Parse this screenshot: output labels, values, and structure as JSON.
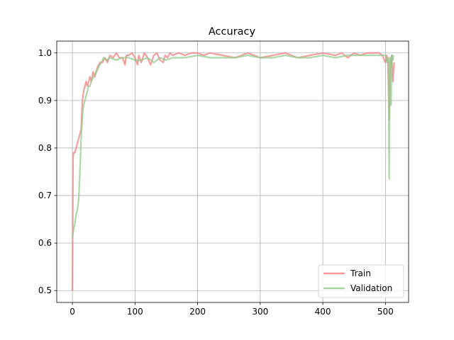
{
  "chart_data": {
    "type": "line",
    "title": "Accuracy",
    "xlabel": "",
    "ylabel": "",
    "xlim": [
      -25,
      537
    ],
    "ylim": [
      0.475,
      1.025
    ],
    "xticks": [
      0,
      100,
      200,
      300,
      400,
      500
    ],
    "yticks": [
      0.5,
      0.6,
      0.7,
      0.8,
      0.9,
      1.0
    ],
    "xtick_labels": [
      "0",
      "100",
      "200",
      "300",
      "400",
      "500"
    ],
    "ytick_labels": [
      "0.5",
      "0.6",
      "0.7",
      "0.8",
      "0.9",
      "1.0"
    ],
    "grid": true,
    "legend_position": "lower-right",
    "series": [
      {
        "name": "Train",
        "color": "#f08080",
        "x": [
          0,
          1,
          2,
          4,
          6,
          8,
          10,
          12,
          14,
          15,
          16,
          17,
          18,
          20,
          22,
          24,
          26,
          28,
          30,
          33,
          36,
          40,
          44,
          48,
          52,
          56,
          60,
          65,
          70,
          75,
          80,
          84,
          86,
          90,
          95,
          100,
          104,
          106,
          110,
          115,
          120,
          125,
          130,
          135,
          140,
          145,
          148,
          152,
          156,
          160,
          170,
          180,
          190,
          200,
          210,
          220,
          240,
          260,
          280,
          300,
          320,
          340,
          360,
          380,
          400,
          420,
          430,
          440,
          450,
          460,
          470,
          480,
          490,
          495,
          500,
          502,
          504,
          506,
          508,
          510,
          512,
          514
        ],
        "y": [
          0.5,
          0.78,
          0.79,
          0.79,
          0.8,
          0.81,
          0.82,
          0.83,
          0.84,
          0.87,
          0.9,
          0.91,
          0.92,
          0.93,
          0.94,
          0.93,
          0.94,
          0.95,
          0.94,
          0.96,
          0.95,
          0.97,
          0.98,
          0.98,
          0.99,
          0.98,
          0.995,
          0.99,
          1.0,
          0.99,
          0.99,
          0.975,
          0.995,
          0.995,
          1.0,
          0.99,
          0.975,
          0.995,
          0.98,
          1.0,
          0.99,
          0.975,
          0.995,
          1.0,
          0.985,
          0.98,
          0.995,
          0.99,
          1.0,
          0.995,
          1.0,
          0.995,
          1.0,
          1.0,
          0.995,
          1.0,
          0.995,
          0.99,
          1.0,
          0.99,
          0.995,
          1.0,
          0.99,
          0.995,
          1.0,
          0.995,
          1.0,
          0.99,
          1.0,
          0.995,
          1.0,
          1.0,
          1.0,
          0.995,
          0.98,
          0.995,
          0.98,
          0.86,
          0.98,
          0.995,
          0.94,
          0.98
        ]
      },
      {
        "name": "Validation",
        "color": "#90ca8a",
        "x": [
          0,
          1,
          2,
          4,
          6,
          8,
          10,
          12,
          14,
          16,
          18,
          20,
          22,
          24,
          26,
          28,
          30,
          34,
          38,
          42,
          46,
          50,
          55,
          60,
          70,
          80,
          90,
          100,
          110,
          120,
          130,
          140,
          150,
          160,
          180,
          200,
          220,
          240,
          260,
          280,
          300,
          320,
          340,
          360,
          380,
          400,
          420,
          440,
          460,
          480,
          495,
          500,
          503,
          505,
          506,
          507,
          508,
          509,
          510,
          511,
          512,
          513
        ],
        "y": [
          0.61,
          0.62,
          0.63,
          0.64,
          0.66,
          0.67,
          0.69,
          0.75,
          0.82,
          0.87,
          0.89,
          0.9,
          0.91,
          0.92,
          0.93,
          0.93,
          0.94,
          0.95,
          0.96,
          0.97,
          0.98,
          0.99,
          0.985,
          0.99,
          0.985,
          0.99,
          0.99,
          0.985,
          0.985,
          0.99,
          0.98,
          0.99,
          0.985,
          0.99,
          0.99,
          0.995,
          0.99,
          0.99,
          0.99,
          0.995,
          0.99,
          0.99,
          0.995,
          0.99,
          0.99,
          0.995,
          0.99,
          0.995,
          0.995,
          0.995,
          0.995,
          0.995,
          0.98,
          0.99,
          0.735,
          0.99,
          0.98,
          0.89,
          0.99,
          0.995,
          0.985,
          0.995
        ]
      }
    ]
  }
}
